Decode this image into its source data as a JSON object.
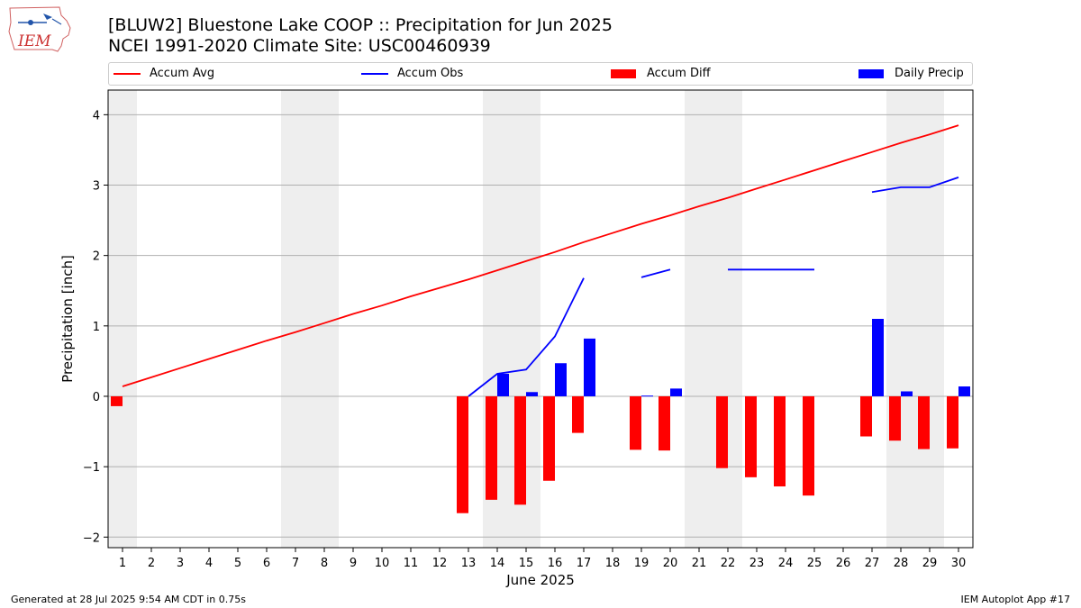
{
  "title": {
    "line1": "[BLUW2] Bluestone Lake COOP :: Precipitation for Jun 2025",
    "line2": "NCEI 1991-2020 Climate Site: USC00460939"
  },
  "logo": {
    "text": "IEM"
  },
  "footer": {
    "left": "Generated at 28 Jul 2025 9:54 AM CDT in 0.75s",
    "right": "IEM Autoplot App #17"
  },
  "colors": {
    "accum_avg": "#ff0000",
    "accum_obs": "#0000ff",
    "accum_diff": "#ff0000",
    "daily_precip": "#0000ff",
    "weekend_band": "#eeeeee",
    "grid": "#b0b0b0"
  },
  "chart_data": {
    "type": "bar",
    "xlabel": "June 2025",
    "ylabel": "Precipitation [inch]",
    "x": [
      1,
      2,
      3,
      4,
      5,
      6,
      7,
      8,
      9,
      10,
      11,
      12,
      13,
      14,
      15,
      16,
      17,
      18,
      19,
      20,
      21,
      22,
      23,
      24,
      25,
      26,
      27,
      28,
      29,
      30
    ],
    "xlim": [
      0.5,
      30.5
    ],
    "ylim": [
      -2.15,
      4.35
    ],
    "yticks": [
      -2,
      -1,
      0,
      1,
      2,
      3,
      4
    ],
    "ytick_labels": [
      "−2",
      "−1",
      "0",
      "1",
      "2",
      "3",
      "4"
    ],
    "grid": "y",
    "legend_position": "top",
    "weekend_shading": [
      [
        0.5,
        1.5
      ],
      [
        6.5,
        8.5
      ],
      [
        13.5,
        15.5
      ],
      [
        20.5,
        22.5
      ],
      [
        27.5,
        29.5
      ]
    ],
    "series": [
      {
        "name": "Accum Avg",
        "kind": "line",
        "values": [
          0.14,
          0.27,
          0.4,
          0.53,
          0.66,
          0.79,
          0.91,
          1.04,
          1.17,
          1.29,
          1.42,
          1.54,
          1.66,
          1.79,
          1.92,
          2.05,
          2.19,
          2.32,
          2.45,
          2.57,
          2.7,
          2.82,
          2.95,
          3.08,
          3.21,
          3.34,
          3.47,
          3.6,
          3.72,
          3.85
        ]
      },
      {
        "name": "Accum Obs",
        "kind": "line",
        "values": [
          null,
          null,
          null,
          null,
          null,
          null,
          null,
          null,
          null,
          null,
          null,
          null,
          0.0,
          0.32,
          0.38,
          0.85,
          1.68,
          null,
          1.69,
          1.8,
          null,
          1.8,
          1.8,
          1.8,
          1.8,
          null,
          2.9,
          2.97,
          2.97,
          3.11
        ]
      },
      {
        "name": "Accum Diff",
        "kind": "bar",
        "values": [
          -0.14,
          null,
          null,
          null,
          null,
          null,
          null,
          null,
          null,
          null,
          null,
          null,
          -1.66,
          -1.47,
          -1.54,
          -1.2,
          -0.52,
          null,
          -0.76,
          -0.77,
          null,
          -1.02,
          -1.15,
          -1.28,
          -1.41,
          null,
          -0.57,
          -0.63,
          -0.75,
          -0.74
        ]
      },
      {
        "name": "Daily Precip",
        "kind": "bar",
        "values": [
          null,
          null,
          null,
          null,
          null,
          null,
          null,
          null,
          null,
          null,
          null,
          null,
          null,
          0.32,
          0.06,
          0.47,
          0.82,
          null,
          0.01,
          0.11,
          null,
          null,
          null,
          null,
          null,
          null,
          1.1,
          0.07,
          null,
          0.14
        ]
      }
    ]
  }
}
